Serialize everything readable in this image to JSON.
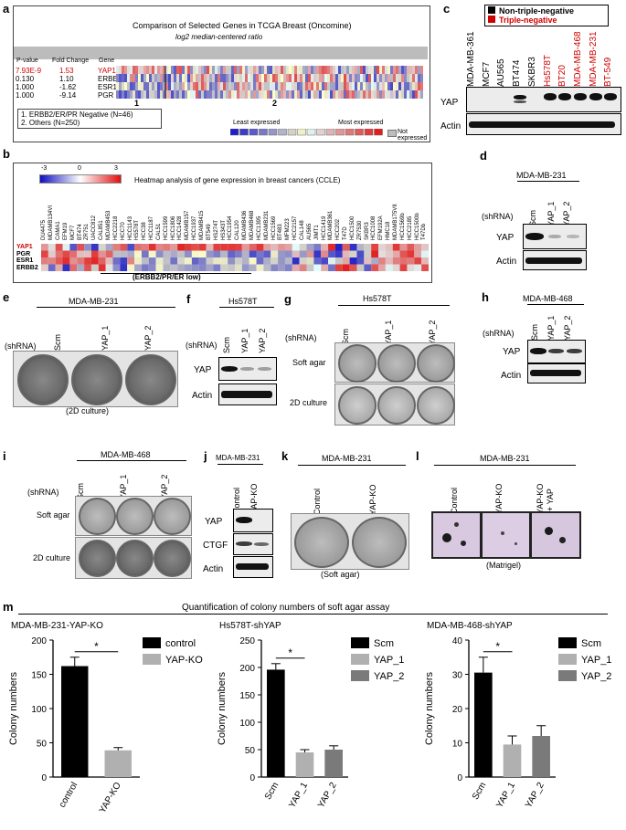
{
  "panel_a": {
    "letter": "a",
    "title": "Comparison of Selected Genes in TCGA Breast (Oncomine)",
    "subtitle": "log2 median-centered ratio",
    "col_headers": [
      "P-value",
      "Fold Change",
      "Gene"
    ],
    "rows": [
      {
        "p": "7.93E-9",
        "fc": "1.53",
        "gene": "YAP1",
        "highlight": true
      },
      {
        "p": "0.130",
        "fc": "1.10",
        "gene": "ERBB2",
        "highlight": false
      },
      {
        "p": "1.000",
        "fc": "-1.62",
        "gene": "ESR1",
        "highlight": false
      },
      {
        "p": "1.000",
        "fc": "-9.14",
        "gene": "PGR",
        "highlight": false
      }
    ],
    "group_marks": [
      "1",
      "2"
    ],
    "legend_groups": [
      "1. ERBB2/ER/PR Negative (N=46)",
      "2. Others (N=250)"
    ],
    "least": "Least expressed",
    "most": "Most expressed",
    "not_expressed": "Not expressed"
  },
  "panel_b": {
    "letter": "b",
    "scale_min": "-3",
    "scale_mid": "0",
    "scale_max": "3",
    "title": "Heatmap analysis of gene expression in breast cancers (CCLE)",
    "cell_lines": [
      "DU4475",
      "MDAMB134VI",
      "CAMA1",
      "EFM19",
      "MCF7",
      "BT474",
      "ZR751",
      "UACC812",
      "CAL851",
      "MDAMB453",
      "HCC2218",
      "HCC70",
      "HCC1143",
      "HS578T",
      "HCC38",
      "HCC1187",
      "CAL51",
      "HCC1599",
      "HCC1806",
      "HCC1428",
      "MDAMB157",
      "HCC1937",
      "MDAMB415",
      "BT549",
      "HS274T",
      "HS343T",
      "HCC1954",
      "CAL120",
      "MDAMB436",
      "MDAMB468",
      "HCC1395",
      "MDAMB231",
      "HCC1569",
      "BT483",
      "MFM223",
      "HCC2157",
      "CAL148",
      "AU565",
      "JIMT1",
      "HCC1419",
      "MDAMB361",
      "HCC202",
      "T47D",
      "HCC1500",
      "ZR7530",
      "SKBR3",
      "HCC1008",
      "EFM192A",
      "HMC18",
      "MDAMB175VII",
      "HCC1569b",
      "HCC2185",
      "HCC1500b",
      "T47Db"
    ],
    "genes": [
      "YAP1",
      "PGR",
      "ESR1",
      "ERBB2"
    ],
    "low_group": "(ERBB2/PR/ER low)"
  },
  "panel_c": {
    "letter": "c",
    "legend": [
      "Non-triple-negative",
      "Triple-negative"
    ],
    "lanes": [
      {
        "name": "MDA-MB-361",
        "tn": false
      },
      {
        "name": "MCF7",
        "tn": false
      },
      {
        "name": "AU565",
        "tn": false
      },
      {
        "name": "BT474",
        "tn": false
      },
      {
        "name": "SKBR3",
        "tn": false
      },
      {
        "name": "Hs578T",
        "tn": true
      },
      {
        "name": "BT20",
        "tn": true
      },
      {
        "name": "MDA-MB-468",
        "tn": true
      },
      {
        "name": "MDA-MB-231",
        "tn": true
      },
      {
        "name": "BT-549",
        "tn": true
      }
    ],
    "rows": [
      "YAP",
      "Actin"
    ]
  },
  "panel_d": {
    "letter": "d",
    "cell": "MDA-MB-231",
    "shrna": "(shRNA)",
    "lanes": [
      "Scm",
      "YAP_1",
      "YAP_2"
    ],
    "rows": [
      "YAP",
      "Actin"
    ]
  },
  "panel_e": {
    "letter": "e",
    "cell": "MDA-MB-231",
    "shrna": "(shRNA)",
    "lanes": [
      "Scm",
      "YAP_1",
      "YAP_2"
    ],
    "caption": "(2D culture)"
  },
  "panel_f": {
    "letter": "f",
    "cell": "Hs578T",
    "shrna": "(shRNA)",
    "lanes": [
      "Scm",
      "YAP_1",
      "YAP_2"
    ],
    "rows": [
      "YAP",
      "Actin"
    ]
  },
  "panel_g": {
    "letter": "g",
    "cell": "Hs578T",
    "shrna": "(shRNA)",
    "lanes": [
      "Scm",
      "YAP_1",
      "YAP_2"
    ],
    "rows": [
      "Soft agar",
      "2D culture"
    ]
  },
  "panel_h": {
    "letter": "h",
    "cell": "MDA-MB-468",
    "shrna": "(shRNA)",
    "lanes": [
      "Scm",
      "YAP_1",
      "YAP_2"
    ],
    "rows": [
      "YAP",
      "Actin"
    ]
  },
  "panel_i": {
    "letter": "i",
    "cell": "MDA-MB-468",
    "shrna": "(shRNA)",
    "lanes": [
      "Scm",
      "YAP_1",
      "YAP_2"
    ],
    "rows": [
      "Soft agar",
      "2D culture"
    ]
  },
  "panel_j": {
    "letter": "j",
    "cell": "MDA-MB-231",
    "lanes": [
      "Control",
      "YAP-KO"
    ],
    "rows": [
      "YAP",
      "CTGF",
      "Actin"
    ]
  },
  "panel_k": {
    "letter": "k",
    "cell": "MDA-MB-231",
    "lanes": [
      "Control",
      "YAP-KO"
    ],
    "caption": "(Soft agar)"
  },
  "panel_l": {
    "letter": "l",
    "cell": "MDA-MB-231",
    "lanes": [
      "Control",
      "YAP-KO",
      "YAP-KO",
      "+ YAP"
    ],
    "caption": "(Matrigel)"
  },
  "panel_m": {
    "letter": "m",
    "title": "Quantification of colony numbers of soft agar assay"
  },
  "colors": {
    "tn_red": "#d00000",
    "black_bar": "#000000",
    "grey1": "#b0b0b0",
    "grey2": "#7a7a7a"
  },
  "chart_data": [
    {
      "type": "bar",
      "title": "MDA-MB-231-YAP-KO",
      "ylabel": "Colony numbers",
      "categories": [
        "control",
        "YAP-KO"
      ],
      "values": [
        162,
        39
      ],
      "errors": [
        13,
        4
      ],
      "ylim": [
        0,
        200
      ],
      "yticks": [
        0,
        50,
        100,
        150,
        200
      ],
      "legend": [
        "control",
        "YAP-KO"
      ],
      "legend_position": "top-right",
      "significance": "*"
    },
    {
      "type": "bar",
      "title": "Hs578T-shYAP",
      "ylabel": "Colony numbers",
      "categories": [
        "Scm",
        "YAP_1",
        "YAP_2"
      ],
      "values": [
        196,
        45,
        50
      ],
      "errors": [
        11,
        5,
        7
      ],
      "ylim": [
        0,
        250
      ],
      "yticks": [
        0,
        50,
        100,
        150,
        200,
        250
      ],
      "legend": [
        "Scm",
        "YAP_1",
        "YAP_2"
      ],
      "legend_position": "top-right",
      "significance": "*"
    },
    {
      "type": "bar",
      "title": "MDA-MB-468-shYAP",
      "ylabel": "Colony numbers",
      "categories": [
        "Scm",
        "YAP_1",
        "YAP_2"
      ],
      "values": [
        30.5,
        9.5,
        12
      ],
      "errors": [
        4.5,
        2.5,
        3
      ],
      "ylim": [
        0,
        40
      ],
      "yticks": [
        0,
        10,
        20,
        30,
        40
      ],
      "legend": [
        "Scm",
        "YAP_1",
        "YAP_2"
      ],
      "legend_position": "top-right",
      "significance": "*"
    }
  ]
}
